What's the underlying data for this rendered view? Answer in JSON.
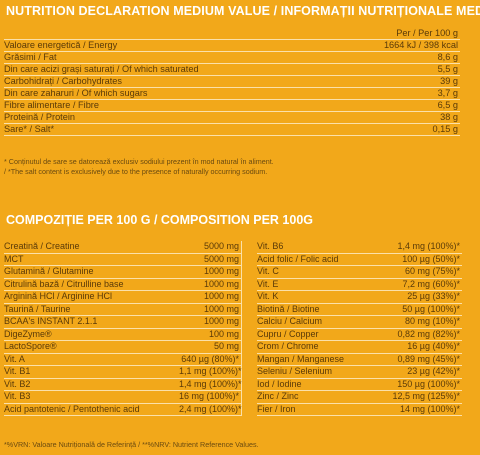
{
  "title_nutrition": "NUTRITION DECLARATION MEDIUM VALUE / INFORMAȚII NUTRIȚIONALE MEDII",
  "nutrition": {
    "header": "Per / Per 100 g",
    "rows": [
      {
        "name": "Valoare energetică / Energy",
        "value": "1664 kJ / 398 kcal"
      },
      {
        "name": "Grăsimi / Fat",
        "value": "8,6 g"
      },
      {
        "name": "Din care acizi grași saturați / Of which saturated",
        "value": "5,5 g"
      },
      {
        "name": "Carbohidrați / Carbohydrates",
        "value": "39 g"
      },
      {
        "name": "Din care zaharuri / Of which sugars",
        "value": "3,7 g"
      },
      {
        "name": "Fibre alimentare / Fibre",
        "value": "6,5 g"
      },
      {
        "name": "Proteină / Protein",
        "value": "38 g"
      },
      {
        "name": "Sare* / Salt*",
        "value": "0,15 g"
      }
    ],
    "note_ro": "* Conținutul de sare se datorează exclusiv sodiului prezent în mod natural în aliment.",
    "note_en": "/ *The salt content is exclusively due to the presence of naturally occurring sodium."
  },
  "title_composition": "COMPOZIȚIE PER 100 G / COMPOSITION PER 100G",
  "composition": {
    "left": [
      {
        "name": "Creatină / Creatine",
        "qty": "5000 mg"
      },
      {
        "name": "MCT",
        "qty": "5000 mg"
      },
      {
        "name": "Glutamină / Glutamine",
        "qty": "1000 mg"
      },
      {
        "name": "Citrulină bază / Citrulline base",
        "qty": "1000 mg"
      },
      {
        "name": "Arginină HCl / Arginine HCl",
        "qty": "1000 mg"
      },
      {
        "name": "Taurină / Taurine",
        "qty": "1000 mg"
      },
      {
        "name": "BCAA's INSTANT 2.1.1",
        "qty": "1000 mg"
      },
      {
        "name": "DigeZyme®",
        "qty": "100 mg"
      },
      {
        "name": "LactoSpore®",
        "qty": "50 mg"
      },
      {
        "name": "Vit. A",
        "qty": "640 µg (80%)*"
      },
      {
        "name": "Vit. B1",
        "qty": "1,1 mg (100%)*"
      },
      {
        "name": "Vit. B2",
        "qty": "1,4 mg (100%)*"
      },
      {
        "name": "Vit. B3",
        "qty": "16 mg (100%)*"
      },
      {
        "name": "Acid pantotenic / Pentothenic acid",
        "qty": "2,4 mg (100%)*"
      }
    ],
    "right": [
      {
        "name": "Vit. B6",
        "qty": "1,4 mg (100%)*"
      },
      {
        "name": "Acid folic / Folic acid",
        "qty": "100 µg (50%)*"
      },
      {
        "name": "Vit. C",
        "qty": "60 mg (75%)*"
      },
      {
        "name": "Vit. E",
        "qty": "7,2 mg (60%)*"
      },
      {
        "name": "Vit. K",
        "qty": "25 µg (33%)*"
      },
      {
        "name": "Biotină / Biotine",
        "qty": "50 µg (100%)*"
      },
      {
        "name": "Calciu / Calcium",
        "qty": "80 mg (10%)*"
      },
      {
        "name": "Cupru / Copper",
        "qty": "0,82 mg (82%)*"
      },
      {
        "name": "Crom / Chrome",
        "qty": "16 µg (40%)*"
      },
      {
        "name": "Mangan / Manganese",
        "qty": "0,89 mg (45%)*"
      },
      {
        "name": "Seleniu / Selenium",
        "qty": "23 µg (42%)*"
      },
      {
        "name": "Iod / Iodine",
        "qty": "150 µg (100%)*"
      },
      {
        "name": "Zinc / Zinc",
        "qty": "12,5 mg (125%)*"
      },
      {
        "name": "Fier / Iron",
        "qty": "14 mg (100%)*"
      }
    ]
  },
  "footer": "*%VRN: Valoare Nutrițională de Referință / **%NRV: Nutrient Reference Values."
}
